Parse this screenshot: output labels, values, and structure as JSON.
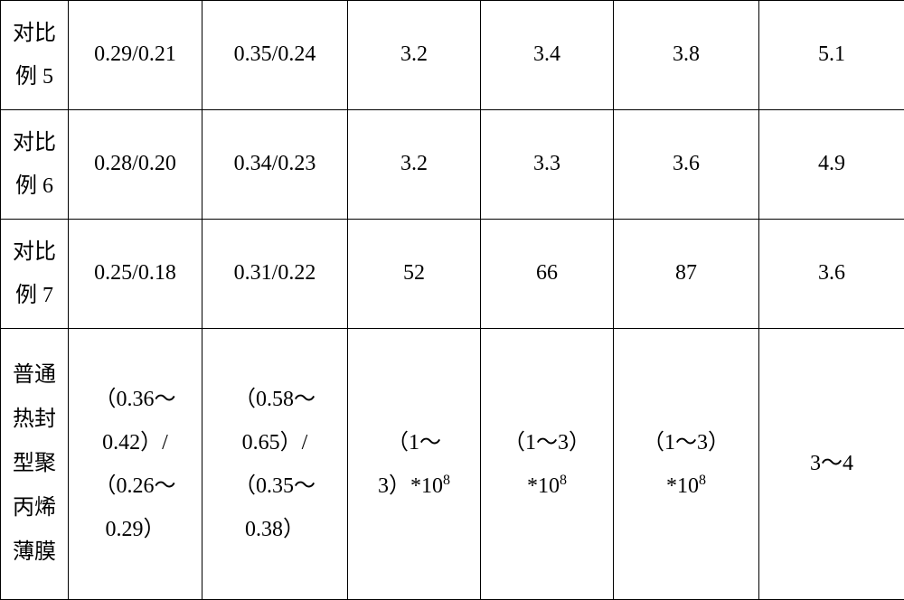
{
  "table": {
    "columns": {
      "label_width": 75,
      "colA_width": 148,
      "colB_width": 161,
      "colC_width": 147,
      "colD_width": 147,
      "colE_width": 161,
      "colF_width": 161
    },
    "border_color": "#000000",
    "background_color": "#ffffff",
    "text_color": "#000000",
    "font_family": "SimSun",
    "base_fontsize": 24,
    "rows": [
      {
        "label_line1": "对比",
        "label_line2": "例 5",
        "a": "0.29/0.21",
        "b": "0.35/0.24",
        "c": "3.2",
        "d": "3.4",
        "e": "3.8",
        "f": "5.1"
      },
      {
        "label_line1": "对比",
        "label_line2": "例 6",
        "a": "0.28/0.20",
        "b": "0.34/0.23",
        "c": "3.2",
        "d": "3.3",
        "e": "3.6",
        "f": "4.9"
      },
      {
        "label_line1": "对比",
        "label_line2": "例 7",
        "a": "0.25/0.18",
        "b": "0.31/0.22",
        "c": "52",
        "d": "66",
        "e": "87",
        "f": "3.6"
      },
      {
        "label_line1": "普通",
        "label_line2": "热封",
        "label_line3": "型聚",
        "label_line4": "丙烯",
        "label_line5": "薄膜",
        "a_line1": "（0.36～",
        "a_line2": "0.42）/",
        "a_line3": "（0.26～",
        "a_line4": "0.29）",
        "b_line1": "（0.58～",
        "b_line2": "0.65）/",
        "b_line3": "（0.35～",
        "b_line4": "0.38）",
        "c_line1": "（1～",
        "c_line2_prefix": "3）*10",
        "c_line2_sup": "8",
        "d_line1": "（1～3）",
        "d_line2_prefix": "*10",
        "d_line2_sup": "8",
        "e_line1": "（1～3）",
        "e_line2_prefix": "*10",
        "e_line2_sup": "8",
        "f": "3～4"
      }
    ]
  }
}
